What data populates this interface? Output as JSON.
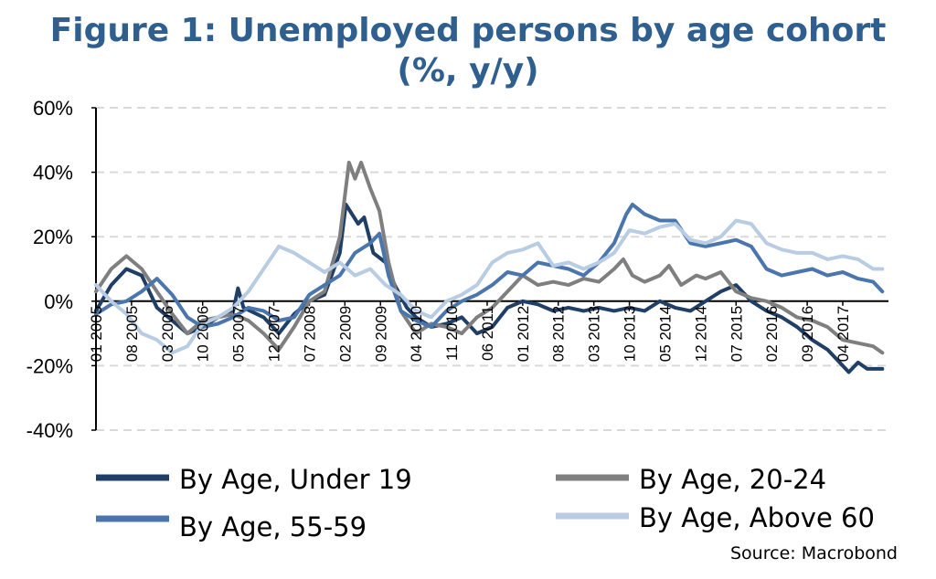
{
  "chart_data": {
    "type": "line",
    "title_line1": "Figure 1: Unemployed persons by age cohort",
    "title_line2": "(%, y/y)",
    "ylabel": "",
    "xlabel": "",
    "ylim": [
      -40,
      60
    ],
    "yticks": [
      {
        "value": 60,
        "label": "60%"
      },
      {
        "value": 40,
        "label": "40%"
      },
      {
        "value": 20,
        "label": "20%"
      },
      {
        "value": 0,
        "label": "0%"
      },
      {
        "value": -20,
        "label": "-20%"
      },
      {
        "value": -40,
        "label": "-40%"
      }
    ],
    "xlim": [
      2005.0,
      2018.0
    ],
    "xticks": [
      {
        "t": 2005.0,
        "label": "01 2005"
      },
      {
        "t": 2005.583,
        "label": "08 2005"
      },
      {
        "t": 2006.167,
        "label": "03 2006"
      },
      {
        "t": 2006.75,
        "label": "10 2006"
      },
      {
        "t": 2007.333,
        "label": "05 2007"
      },
      {
        "t": 2007.917,
        "label": "12 2007"
      },
      {
        "t": 2008.5,
        "label": "07 2008"
      },
      {
        "t": 2009.083,
        "label": "02 2009"
      },
      {
        "t": 2009.667,
        "label": "09 2009"
      },
      {
        "t": 2010.25,
        "label": "04 2010"
      },
      {
        "t": 2010.833,
        "label": "11 2010"
      },
      {
        "t": 2011.417,
        "label": "06 2011"
      },
      {
        "t": 2012.0,
        "label": "01 2012"
      },
      {
        "t": 2012.583,
        "label": "08 2012"
      },
      {
        "t": 2013.167,
        "label": "03 2013"
      },
      {
        "t": 2013.75,
        "label": "10 2013"
      },
      {
        "t": 2014.333,
        "label": "05 2014"
      },
      {
        "t": 2014.917,
        "label": "12 2014"
      },
      {
        "t": 2015.5,
        "label": "07 2015"
      },
      {
        "t": 2016.083,
        "label": "02 2016"
      },
      {
        "t": 2016.667,
        "label": "09 2016"
      },
      {
        "t": 2017.25,
        "label": "04 2017"
      }
    ],
    "grid": "horizontal dashed",
    "legend_position": "bottom",
    "series": [
      {
        "name": "By Age, Under 19",
        "color": "#1f3f66",
        "points": [
          [
            2005.0,
            -3
          ],
          [
            2005.25,
            5
          ],
          [
            2005.5,
            10
          ],
          [
            2005.75,
            8
          ],
          [
            2006.0,
            -2
          ],
          [
            2006.25,
            -6
          ],
          [
            2006.5,
            -10
          ],
          [
            2006.75,
            -8
          ],
          [
            2007.0,
            -5
          ],
          [
            2007.25,
            -3
          ],
          [
            2007.33,
            4
          ],
          [
            2007.42,
            -2
          ],
          [
            2007.75,
            -5
          ],
          [
            2008.0,
            -10
          ],
          [
            2008.25,
            -4
          ],
          [
            2008.5,
            0
          ],
          [
            2008.75,
            2
          ],
          [
            2009.0,
            15
          ],
          [
            2009.1,
            30
          ],
          [
            2009.3,
            24
          ],
          [
            2009.4,
            26
          ],
          [
            2009.55,
            15
          ],
          [
            2009.75,
            12
          ],
          [
            2009.9,
            5
          ],
          [
            2010.1,
            -2
          ],
          [
            2010.25,
            -5
          ],
          [
            2010.5,
            -8
          ],
          [
            2010.75,
            -7
          ],
          [
            2011.0,
            -5
          ],
          [
            2011.25,
            -10
          ],
          [
            2011.5,
            -8
          ],
          [
            2011.75,
            -2
          ],
          [
            2012.0,
            0
          ],
          [
            2012.25,
            -1
          ],
          [
            2012.5,
            -3
          ],
          [
            2012.75,
            -2
          ],
          [
            2013.0,
            -3
          ],
          [
            2013.25,
            -2
          ],
          [
            2013.5,
            -3
          ],
          [
            2013.75,
            -2
          ],
          [
            2014.0,
            -3
          ],
          [
            2014.25,
            0
          ],
          [
            2014.5,
            -2
          ],
          [
            2014.75,
            -3
          ],
          [
            2015.0,
            0
          ],
          [
            2015.25,
            3
          ],
          [
            2015.5,
            5
          ],
          [
            2015.75,
            0
          ],
          [
            2016.0,
            -3
          ],
          [
            2016.25,
            -5
          ],
          [
            2016.5,
            -8
          ],
          [
            2016.75,
            -12
          ],
          [
            2017.0,
            -15
          ],
          [
            2017.2,
            -19
          ],
          [
            2017.35,
            -22
          ],
          [
            2017.5,
            -19
          ],
          [
            2017.65,
            -21
          ],
          [
            2017.9,
            -21
          ]
        ]
      },
      {
        "name": "By Age, 20-24",
        "color": "#7f7f7f",
        "points": [
          [
            2005.0,
            3
          ],
          [
            2005.25,
            10
          ],
          [
            2005.5,
            14
          ],
          [
            2005.75,
            10
          ],
          [
            2006.0,
            3
          ],
          [
            2006.25,
            -4
          ],
          [
            2006.5,
            -10
          ],
          [
            2006.75,
            -6
          ],
          [
            2007.0,
            -5
          ],
          [
            2007.25,
            -4
          ],
          [
            2007.5,
            -6
          ],
          [
            2007.75,
            -10
          ],
          [
            2008.0,
            -15
          ],
          [
            2008.25,
            -8
          ],
          [
            2008.5,
            0
          ],
          [
            2008.75,
            3
          ],
          [
            2009.0,
            20
          ],
          [
            2009.15,
            43
          ],
          [
            2009.25,
            38
          ],
          [
            2009.35,
            43
          ],
          [
            2009.5,
            35
          ],
          [
            2009.65,
            28
          ],
          [
            2009.8,
            12
          ],
          [
            2010.0,
            -3
          ],
          [
            2010.25,
            -10
          ],
          [
            2010.5,
            -7
          ],
          [
            2010.75,
            -8
          ],
          [
            2011.0,
            -10
          ],
          [
            2011.25,
            -5
          ],
          [
            2011.5,
            -2
          ],
          [
            2011.75,
            3
          ],
          [
            2012.0,
            8
          ],
          [
            2012.25,
            5
          ],
          [
            2012.5,
            6
          ],
          [
            2012.75,
            5
          ],
          [
            2013.0,
            7
          ],
          [
            2013.25,
            6
          ],
          [
            2013.5,
            10
          ],
          [
            2013.65,
            13
          ],
          [
            2013.8,
            8
          ],
          [
            2014.0,
            6
          ],
          [
            2014.25,
            8
          ],
          [
            2014.4,
            11
          ],
          [
            2014.6,
            5
          ],
          [
            2014.85,
            8
          ],
          [
            2015.0,
            7
          ],
          [
            2015.25,
            9
          ],
          [
            2015.5,
            3
          ],
          [
            2015.75,
            1
          ],
          [
            2016.0,
            0
          ],
          [
            2016.25,
            -2
          ],
          [
            2016.5,
            -5
          ],
          [
            2016.75,
            -6
          ],
          [
            2017.0,
            -8
          ],
          [
            2017.25,
            -12
          ],
          [
            2017.5,
            -13
          ],
          [
            2017.75,
            -14
          ],
          [
            2017.9,
            -16
          ]
        ]
      },
      {
        "name": "By Age, 55-59",
        "color": "#4a76ad",
        "points": [
          [
            2005.0,
            -4
          ],
          [
            2005.25,
            -1
          ],
          [
            2005.5,
            0
          ],
          [
            2005.75,
            3
          ],
          [
            2006.0,
            7
          ],
          [
            2006.25,
            2
          ],
          [
            2006.5,
            -5
          ],
          [
            2006.75,
            -8
          ],
          [
            2007.0,
            -7
          ],
          [
            2007.25,
            -5
          ],
          [
            2007.5,
            -2
          ],
          [
            2007.75,
            -3
          ],
          [
            2008.0,
            -6
          ],
          [
            2008.25,
            -5
          ],
          [
            2008.5,
            2
          ],
          [
            2008.75,
            5
          ],
          [
            2009.0,
            8
          ],
          [
            2009.25,
            15
          ],
          [
            2009.5,
            18
          ],
          [
            2009.65,
            21
          ],
          [
            2009.8,
            8
          ],
          [
            2010.0,
            -3
          ],
          [
            2010.25,
            -6
          ],
          [
            2010.5,
            -8
          ],
          [
            2010.75,
            -3
          ],
          [
            2011.0,
            0
          ],
          [
            2011.25,
            2
          ],
          [
            2011.5,
            5
          ],
          [
            2011.75,
            9
          ],
          [
            2012.0,
            8
          ],
          [
            2012.25,
            12
          ],
          [
            2012.5,
            11
          ],
          [
            2012.75,
            10
          ],
          [
            2013.0,
            8
          ],
          [
            2013.25,
            12
          ],
          [
            2013.5,
            18
          ],
          [
            2013.7,
            27
          ],
          [
            2013.8,
            30
          ],
          [
            2014.0,
            27
          ],
          [
            2014.25,
            25
          ],
          [
            2014.5,
            25
          ],
          [
            2014.75,
            18
          ],
          [
            2015.0,
            17
          ],
          [
            2015.25,
            18
          ],
          [
            2015.5,
            19
          ],
          [
            2015.75,
            17
          ],
          [
            2016.0,
            10
          ],
          [
            2016.25,
            8
          ],
          [
            2016.5,
            9
          ],
          [
            2016.75,
            10
          ],
          [
            2017.0,
            8
          ],
          [
            2017.25,
            9
          ],
          [
            2017.5,
            7
          ],
          [
            2017.75,
            6
          ],
          [
            2017.9,
            3
          ]
        ]
      },
      {
        "name": "By Age, Above 60",
        "color": "#b8cce4",
        "points": [
          [
            2005.0,
            5
          ],
          [
            2005.25,
            0
          ],
          [
            2005.5,
            -4
          ],
          [
            2005.75,
            -10
          ],
          [
            2006.0,
            -12
          ],
          [
            2006.25,
            -16
          ],
          [
            2006.5,
            -14
          ],
          [
            2006.75,
            -7
          ],
          [
            2007.0,
            -5
          ],
          [
            2007.25,
            -2
          ],
          [
            2007.5,
            3
          ],
          [
            2007.75,
            10
          ],
          [
            2008.0,
            17
          ],
          [
            2008.25,
            15
          ],
          [
            2008.5,
            12
          ],
          [
            2008.75,
            9
          ],
          [
            2009.0,
            12
          ],
          [
            2009.25,
            8
          ],
          [
            2009.5,
            10
          ],
          [
            2009.75,
            5
          ],
          [
            2010.0,
            2
          ],
          [
            2010.25,
            -3
          ],
          [
            2010.5,
            -5
          ],
          [
            2010.75,
            0
          ],
          [
            2011.0,
            2
          ],
          [
            2011.25,
            5
          ],
          [
            2011.5,
            12
          ],
          [
            2011.75,
            15
          ],
          [
            2012.0,
            16
          ],
          [
            2012.25,
            18
          ],
          [
            2012.5,
            11
          ],
          [
            2012.75,
            12
          ],
          [
            2013.0,
            10
          ],
          [
            2013.25,
            12
          ],
          [
            2013.5,
            15
          ],
          [
            2013.75,
            22
          ],
          [
            2014.0,
            21
          ],
          [
            2014.25,
            23
          ],
          [
            2014.5,
            24
          ],
          [
            2014.75,
            19
          ],
          [
            2015.0,
            18
          ],
          [
            2015.25,
            20
          ],
          [
            2015.5,
            25
          ],
          [
            2015.75,
            24
          ],
          [
            2016.0,
            18
          ],
          [
            2016.25,
            16
          ],
          [
            2016.5,
            15
          ],
          [
            2016.75,
            15
          ],
          [
            2017.0,
            13
          ],
          [
            2017.25,
            14
          ],
          [
            2017.5,
            13
          ],
          [
            2017.75,
            10
          ],
          [
            2017.9,
            10
          ]
        ]
      }
    ],
    "source": "Source: Macrobond"
  }
}
